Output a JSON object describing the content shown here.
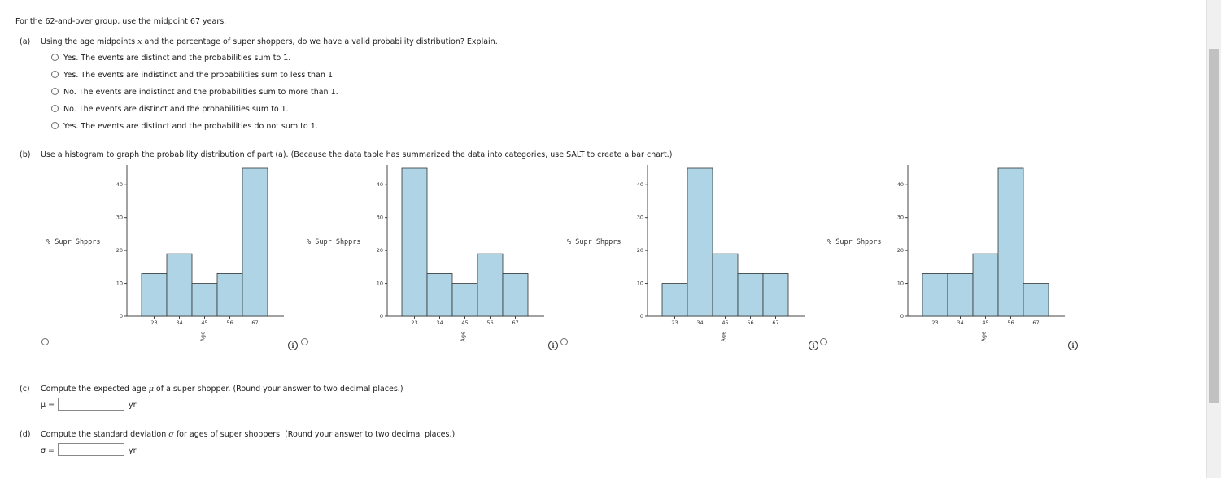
{
  "intro": "For the 62-and-over group, use the midpoint 67 years.",
  "part_a": {
    "label": "(a)",
    "q_before": "Using the age midpoints ",
    "q_var": "x",
    "q_after": " and the percentage of super shoppers, do we have a valid probability distribution? Explain.",
    "options": [
      "Yes. The events are distinct and the probabilities sum to 1.",
      "Yes. The events are indistinct and the probabilities sum to less than 1.",
      "No. The events are indistinct and the probabilities sum to more than 1.",
      "No. The events are distinct and the probabilities sum to 1.",
      "Yes. The events are distinct and the probabilities do not sum to 1."
    ]
  },
  "part_b": {
    "label": "(b)",
    "question": "Use a histogram to graph the probability distribution of part (a). (Because the data table has summarized the data into categories, use SALT to create a bar chart.)"
  },
  "chart_data": [
    {
      "type": "bar",
      "categories": [
        "23",
        "34",
        "45",
        "56",
        "67"
      ],
      "values": [
        13,
        19,
        10,
        13,
        45
      ],
      "ylabel": "% Supr Shpprs",
      "xlabel": "Age",
      "yticks": [
        "0",
        "10",
        "20",
        "30",
        "40"
      ],
      "ylim": [
        0,
        45
      ]
    },
    {
      "type": "bar",
      "categories": [
        "23",
        "34",
        "45",
        "56",
        "67"
      ],
      "values": [
        45,
        13,
        10,
        19,
        13
      ],
      "ylabel": "% Supr Shpprs",
      "xlabel": "Age",
      "yticks": [
        "0",
        "10",
        "20",
        "30",
        "40"
      ],
      "ylim": [
        0,
        45
      ]
    },
    {
      "type": "bar",
      "categories": [
        "23",
        "34",
        "45",
        "56",
        "67"
      ],
      "values": [
        10,
        45,
        19,
        13,
        13
      ],
      "ylabel": "% Supr Shpprs",
      "xlabel": "Age",
      "yticks": [
        "0",
        "10",
        "20",
        "30",
        "40"
      ],
      "ylim": [
        0,
        45
      ]
    },
    {
      "type": "bar",
      "categories": [
        "23",
        "34",
        "45",
        "56",
        "67"
      ],
      "values": [
        13,
        13,
        19,
        45,
        10
      ],
      "ylabel": "% Supr Shpprs",
      "xlabel": "Age",
      "yticks": [
        "0",
        "10",
        "20",
        "30",
        "40"
      ],
      "ylim": [
        0,
        45
      ]
    }
  ],
  "part_c": {
    "label": "(c)",
    "q_before": "Compute the expected age ",
    "q_var": "μ",
    "q_after": " of a super shopper. (Round your answer to two decimal places.)",
    "field_label": "μ =",
    "unit": "yr",
    "value": ""
  },
  "part_d": {
    "label": "(d)",
    "q_before": "Compute the standard deviation ",
    "q_var": "σ",
    "q_after": " for ages of super shoppers. (Round your answer to two decimal places.)",
    "field_label": "σ =",
    "unit": "yr",
    "value": ""
  },
  "colors": {
    "bar_fill": "#aed4e6",
    "bar_stroke": "#333333"
  },
  "icons": {
    "info": "info-icon",
    "radio": "radio-button"
  }
}
